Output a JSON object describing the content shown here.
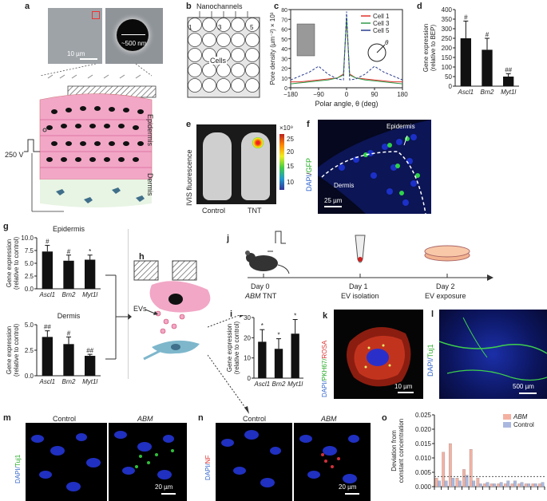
{
  "panels": {
    "a": {
      "label": "a",
      "scale_left": "10 µm",
      "scale_right": "~500 nm",
      "voltage": "250 V",
      "epidermis": "Epidermis",
      "dermis": "Dermis"
    },
    "b": {
      "label": "b",
      "title": "Nanochannels",
      "n1": "1",
      "n3": "3",
      "n5": "5",
      "cells": "Cells"
    },
    "c": {
      "label": "c",
      "theta": "θ"
    },
    "d": {
      "label": "d"
    },
    "e": {
      "label": "e",
      "ylabel": "IVIS fluorescence",
      "control": "Control",
      "tnt": "TNT",
      "colorbar_unit": "×10⁹",
      "colorbar_ticks": [
        "25",
        "20",
        "15",
        "10"
      ]
    },
    "f": {
      "label": "f",
      "stain_dapi": "DAPI",
      "stain_sep": "/",
      "stain_gfp": "GFP",
      "epidermis": "Epidermis",
      "dermis": "Dermis",
      "scale": "25 µm"
    },
    "g": {
      "label": "g"
    },
    "h": {
      "label": "h",
      "evs": "EVs"
    },
    "i": {
      "label": "i"
    },
    "j": {
      "label": "j",
      "day0": "Day 0",
      "day0_sub_italic": "ABM",
      "day0_sub_rest": " TNT",
      "day1": "Day 1",
      "day1_sub": "EV isolation",
      "day2": "Day 2",
      "day2_sub": "EV exposure"
    },
    "k": {
      "label": "k",
      "stain_dapi": "DAPI/",
      "stain_pkh": "PKH67/",
      "stain_rosa": "ROSA",
      "scale": "10 µm"
    },
    "l": {
      "label": "l",
      "stain_dapi": "DAPI/",
      "stain_tuj": "Tuj1",
      "scale": "500 µm"
    },
    "m": {
      "label": "m",
      "control": "Control",
      "abm": "ABM",
      "stain_dapi": "DAPI/",
      "stain_tuj": "Tuj1",
      "scale": "20 µm"
    },
    "n": {
      "label": "n",
      "control": "Control",
      "abm": "ABM",
      "stain_dapi": "DAPI/",
      "stain_nf": "NF",
      "scale": "20 µm"
    },
    "o": {
      "label": "o"
    }
  },
  "colors": {
    "skin_pink": "#f2a7c6",
    "cell_nucleus": "#111111",
    "dermis_green": "#cfe8c9",
    "bar_black": "#111111",
    "cell1": "#e0302a",
    "cell3": "#2f9a4a",
    "cell5": "#2c3f8f",
    "abm_bar": "#f4b1a2",
    "control_bar": "#aab8e0",
    "dapi_blue": "#2233cc",
    "gfp_green": "#33cc44"
  },
  "chart_data": [
    {
      "id": "c",
      "type": "line",
      "title": "",
      "xlabel": "Polar angle, θ (deg)",
      "ylabel": "Pore density (µm⁻²) × 10³",
      "xlim": [
        -180,
        180
      ],
      "ylim": [
        0,
        80
      ],
      "xticks": [
        "−180",
        "−90",
        "0",
        "90",
        "180"
      ],
      "yticks": [
        "0",
        "10",
        "20",
        "30",
        "40",
        "50",
        "60",
        "70",
        "80"
      ],
      "legend_position": "top-right",
      "x": [
        -180,
        -150,
        -120,
        -90,
        -60,
        -30,
        -10,
        0,
        10,
        30,
        60,
        90,
        120,
        150,
        180
      ],
      "series": [
        {
          "name": "Cell 1",
          "color": "#e0302a",
          "values": [
            6,
            6,
            7,
            8,
            9,
            10,
            14,
            70,
            14,
            10,
            9,
            8,
            7,
            6,
            6
          ]
        },
        {
          "name": "Cell 3",
          "color": "#2f9a4a",
          "values": [
            4,
            5,
            6,
            7,
            8,
            10,
            13,
            72,
            13,
            10,
            8,
            7,
            6,
            5,
            4
          ]
        },
        {
          "name": "Cell 5",
          "color": "#2c3f8f",
          "values": [
            8,
            12,
            16,
            22,
            14,
            9,
            8,
            78,
            8,
            9,
            14,
            22,
            16,
            12,
            8
          ]
        }
      ]
    },
    {
      "id": "d",
      "type": "bar",
      "title": "",
      "xlabel": "",
      "ylabel": "Gene expression (relative to BEP)",
      "ylim": [
        0,
        400
      ],
      "yticks": [
        "0",
        "50",
        "100",
        "150",
        "200",
        "250",
        "300",
        "350",
        "400"
      ],
      "categories": [
        "Ascl1",
        "Brn2",
        "Myt1l"
      ],
      "values": [
        250,
        190,
        50
      ],
      "errors": [
        90,
        60,
        15
      ],
      "annotations": [
        "#",
        "#",
        "##"
      ]
    },
    {
      "id": "g-top",
      "type": "bar",
      "title": "Epidermis",
      "xlabel": "",
      "ylabel": "Gene expression (relative to control)",
      "ylim": [
        0,
        10
      ],
      "yticks": [
        "0.0",
        "2.5",
        "5.0",
        "7.5",
        "10.0"
      ],
      "categories": [
        "Ascl1",
        "Brn2",
        "Myt1l"
      ],
      "values": [
        7.3,
        5.5,
        5.7
      ],
      "errors": [
        1.2,
        1.1,
        0.9
      ],
      "annotations": [
        "#",
        "#",
        "*"
      ]
    },
    {
      "id": "g-bottom",
      "type": "bar",
      "title": "Dermis",
      "xlabel": "",
      "ylabel": "Gene expression (relative to control)",
      "ylim": [
        0,
        5
      ],
      "yticks": [
        "0.0",
        "2.5",
        "5.0"
      ],
      "categories": [
        "Ascl1",
        "Brn2",
        "Myt1l"
      ],
      "values": [
        3.8,
        3.1,
        1.95
      ],
      "errors": [
        0.6,
        0.7,
        0.15
      ],
      "annotations": [
        "##",
        "#",
        "##"
      ]
    },
    {
      "id": "i",
      "type": "bar",
      "title": "",
      "xlabel": "",
      "ylabel": "Gene expression (relative to control)",
      "ylim": [
        0,
        30
      ],
      "yticks": [
        "0",
        "10",
        "20",
        "30"
      ],
      "categories": [
        "Ascl1",
        "Brn2",
        "Myt1l"
      ],
      "values": [
        18,
        14.5,
        22
      ],
      "errors": [
        6,
        5,
        7
      ],
      "annotations": [
        "*",
        "*",
        "*"
      ]
    },
    {
      "id": "o",
      "type": "bar",
      "title": "",
      "xlabel": "",
      "ylabel": "Deviation from constant concentration",
      "ylim": [
        0,
        0.025
      ],
      "yticks": [
        "0.000",
        "0.005",
        "0.010",
        "0.015",
        "0.020",
        "0.025"
      ],
      "legend_position": "top-right",
      "series": [
        {
          "name": "ABM",
          "color": "#f4b1a2",
          "values": [
            0.003,
            0.012,
            0.015,
            0.003,
            0.006,
            0.013,
            0.003,
            0.001,
            0.001,
            0.001,
            0.001,
            0.001,
            0.001,
            0.001,
            0.001,
            0.001
          ]
        },
        {
          "name": "Control",
          "color": "#aab8e0",
          "values": [
            0.002,
            0.002,
            0.003,
            0.002,
            0.004,
            0.002,
            0.001,
            0.0015,
            0.001,
            0.0015,
            0.002,
            0.002,
            0.0015,
            0.001,
            0.001,
            0.0015
          ]
        }
      ]
    }
  ]
}
